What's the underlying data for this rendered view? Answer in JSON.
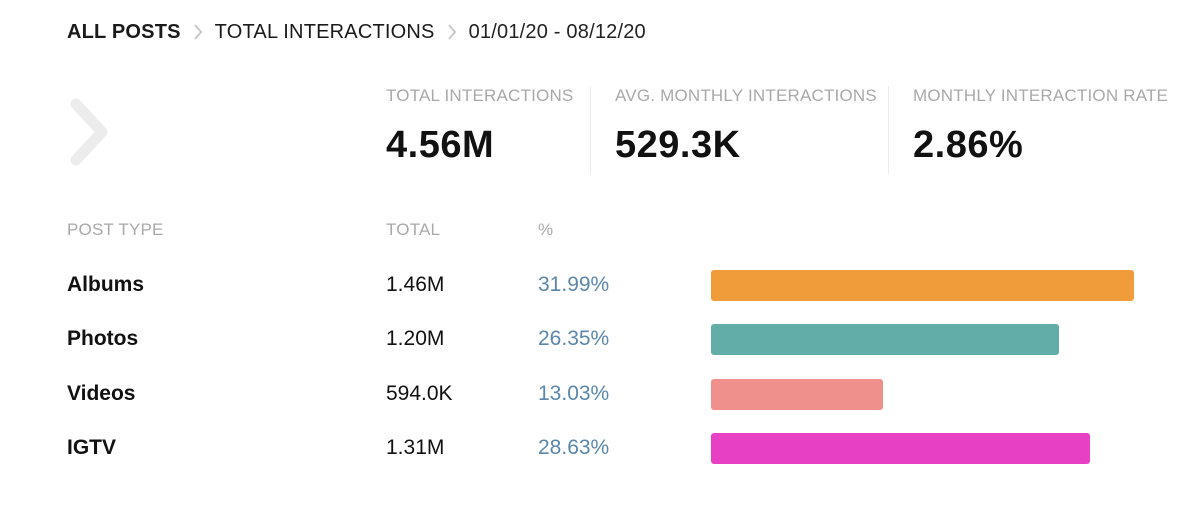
{
  "breadcrumb": {
    "items": [
      "ALL POSTS",
      "TOTAL INTERACTIONS",
      "01/01/20 - 08/12/20"
    ]
  },
  "colors": {
    "albums": "#f19c3a",
    "photos": "#62ada8",
    "videos": "#f0908c",
    "igtv": "#e840c5"
  },
  "stats": [
    {
      "label": "TOTAL INTERACTIONS",
      "value": "4.56M"
    },
    {
      "label": "AVG. MONTHLY INTERACTIONS",
      "value": "529.3K"
    },
    {
      "label": "MONTHLY INTERACTION RATE",
      "value": "2.86%"
    }
  ],
  "table": {
    "headers": [
      "POST TYPE",
      "TOTAL",
      "%"
    ],
    "rows": [
      {
        "type": "Albums",
        "total": "1.46M",
        "percent": "31.99%",
        "share": 31.99,
        "color_key": "albums"
      },
      {
        "type": "Photos",
        "total": "1.20M",
        "percent": "26.35%",
        "share": 26.35,
        "color_key": "photos"
      },
      {
        "type": "Videos",
        "total": "594.0K",
        "percent": "13.03%",
        "share": 13.03,
        "color_key": "videos"
      },
      {
        "type": "IGTV",
        "total": "1.31M",
        "percent": "28.63%",
        "share": 28.63,
        "color_key": "igtv"
      }
    ]
  }
}
